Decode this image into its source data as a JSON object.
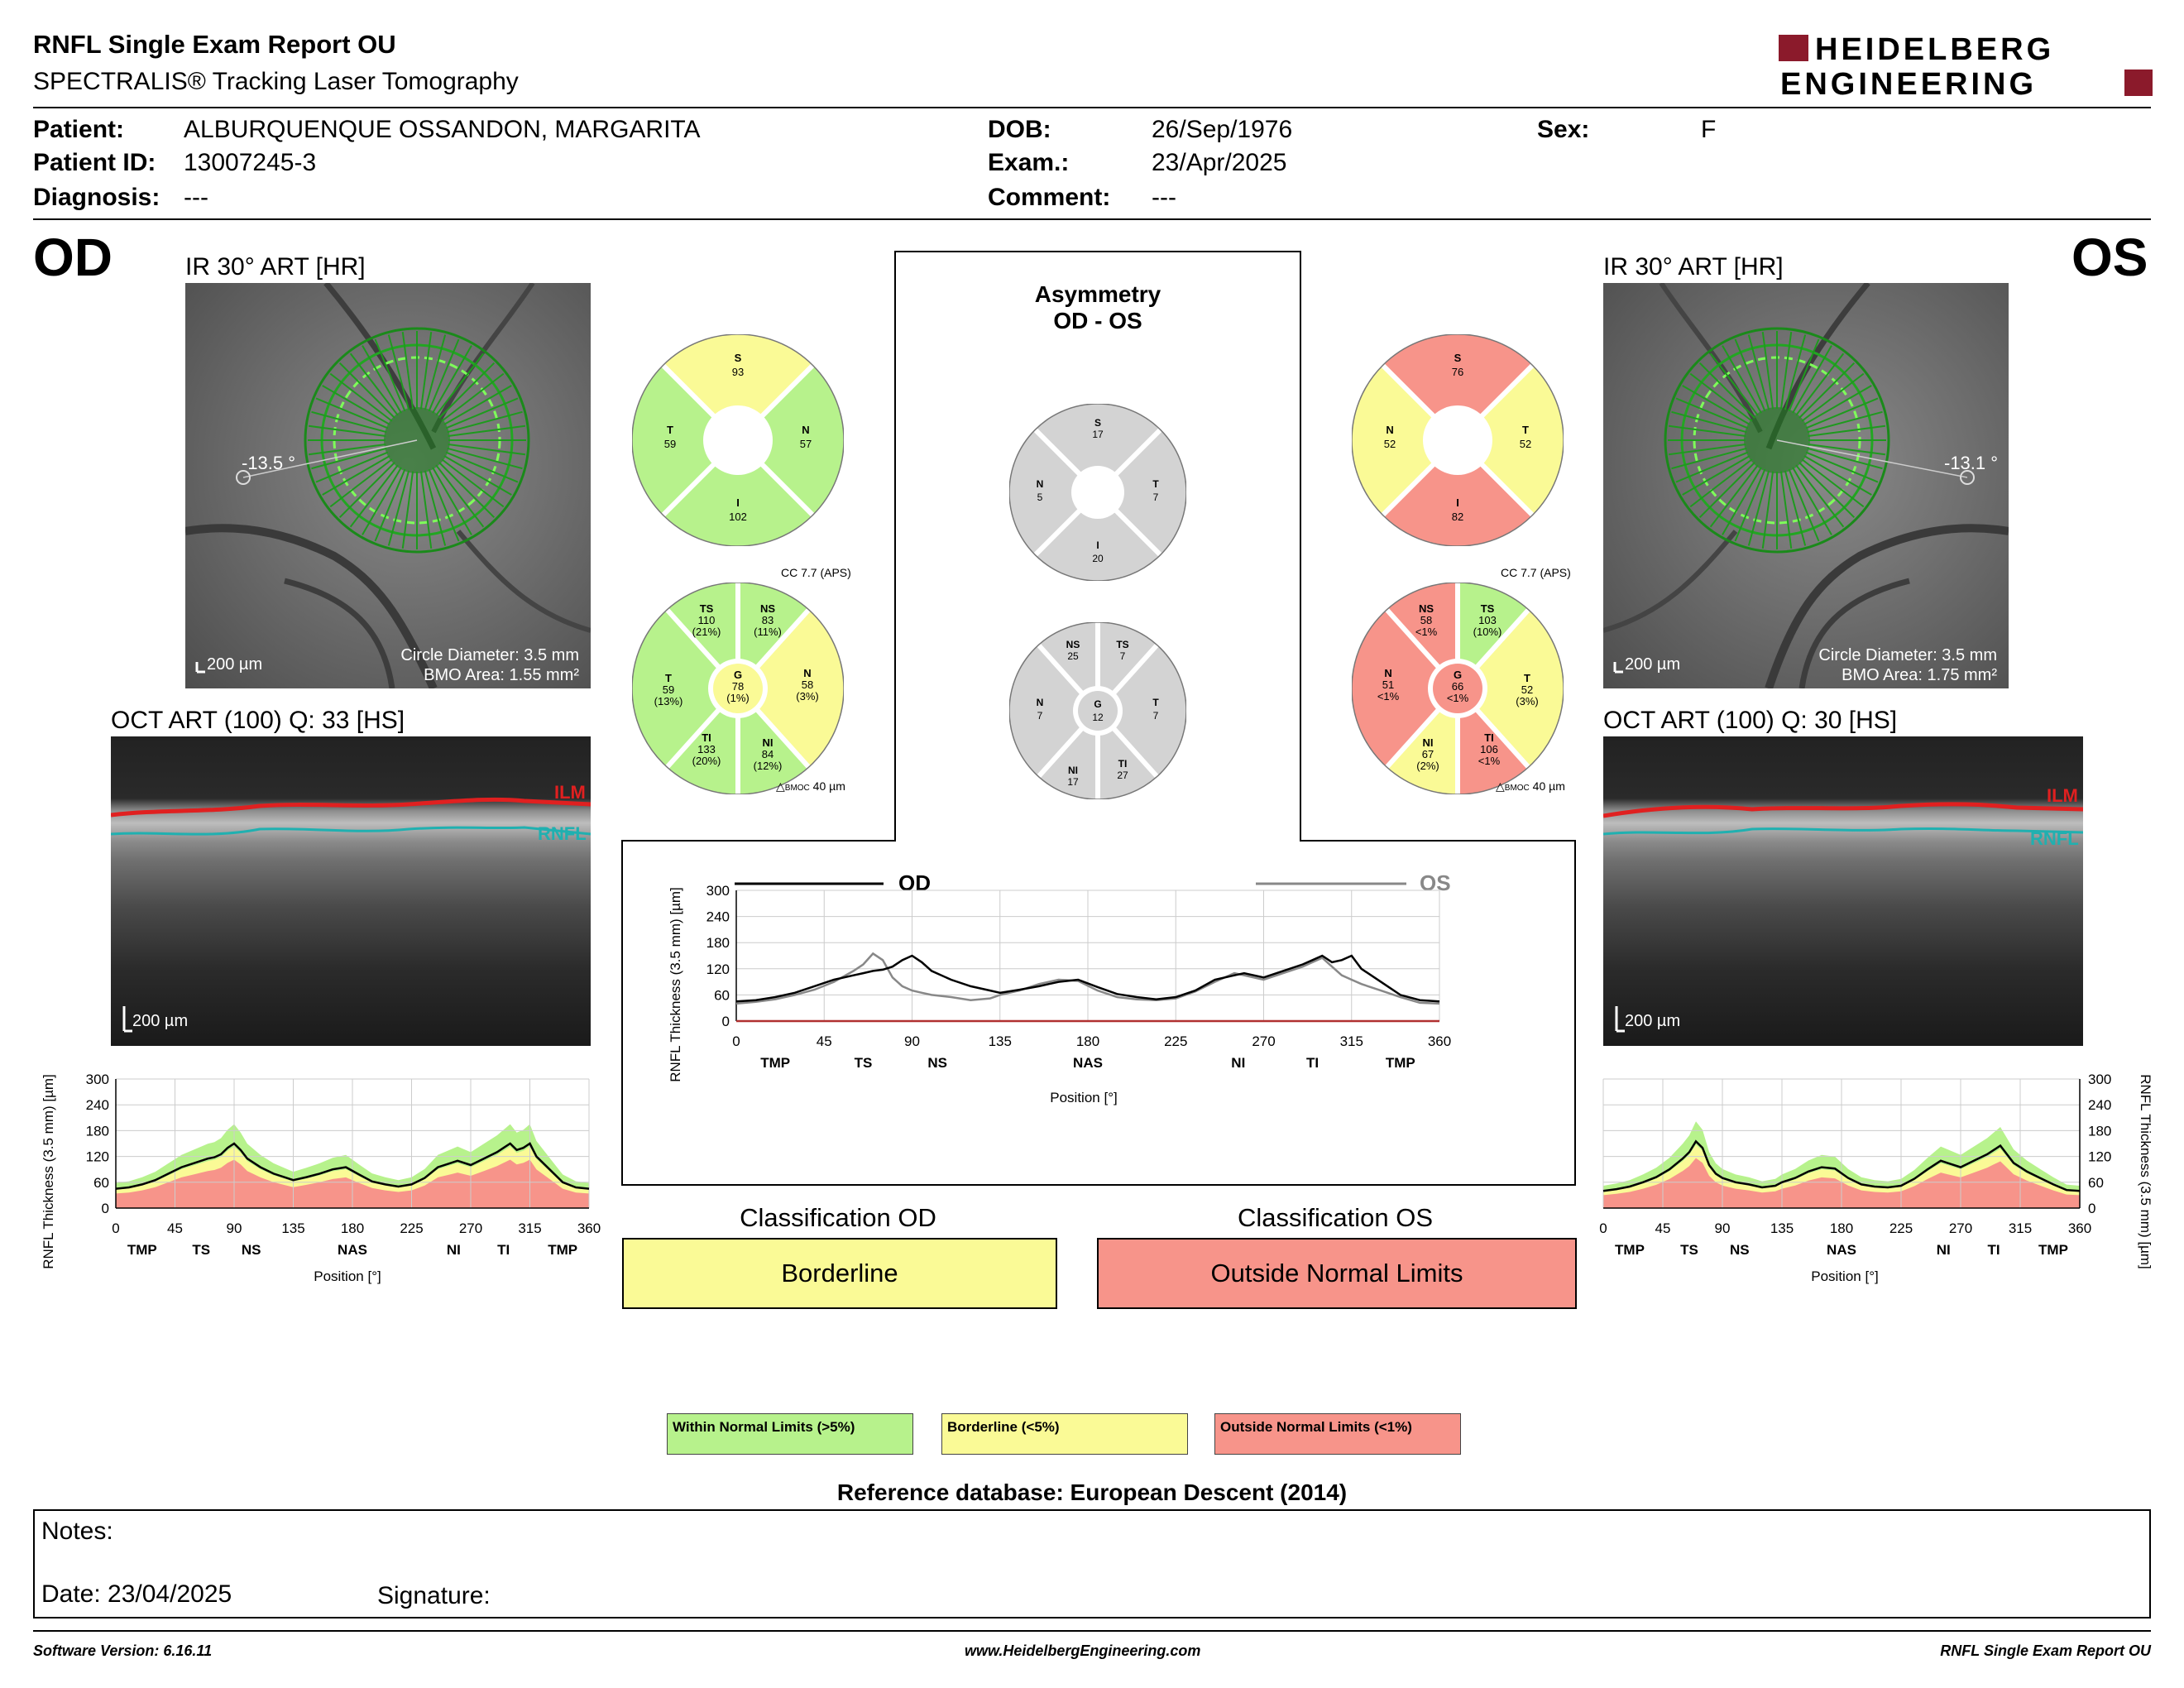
{
  "report": {
    "title": "RNFL Single Exam Report OU",
    "subtitle": "SPECTRALIS® Tracking Laser Tomography",
    "logo_line1": "HEIDELBERG",
    "logo_line2": "ENGINEERING"
  },
  "patient": {
    "patient_label": "Patient:",
    "patient_value": "ALBURQUENQUE OSSANDON, MARGARITA",
    "id_label": "Patient ID:",
    "id_value": "13007245-3",
    "diagnosis_label": "Diagnosis:",
    "diagnosis_value": "---",
    "dob_label": "DOB:",
    "dob_value": "26/Sep/1976",
    "exam_label": "Exam.:",
    "exam_value": "23/Apr/2025",
    "comment_label": "Comment:",
    "comment_value": "---",
    "sex_label": "Sex:",
    "sex_value": "F"
  },
  "od": {
    "eye": "OD",
    "ir_title": "IR 30° ART [HR]",
    "angle": "-13.5 °",
    "scale": "200 µm",
    "circle_diameter": "Circle Diameter: 3.5 mm",
    "bmo_area": "BMO Area: 1.55 mm²",
    "oct_title": "OCT ART (100) Q: 33 [HS]",
    "oct_scale": "200 µm",
    "ilm": "ILM",
    "rnfl": "RNFL",
    "quad": {
      "S": "93",
      "N": "57",
      "I": "102",
      "T": "59"
    },
    "sector": {
      "TS": "110",
      "TS_p": "(21%)",
      "NS": "83",
      "NS_p": "(11%)",
      "N": "58",
      "N_p": "(3%)",
      "NI": "84",
      "NI_p": "(12%)",
      "TI": "133",
      "TI_p": "(20%)",
      "T": "59",
      "T_p": "(13%)",
      "G": "78",
      "G_p": "(1%)"
    },
    "cc": "CC 7.7 (APS)",
    "bmoc": "40 µm",
    "bmoc_label": "BMOC"
  },
  "os": {
    "eye": "OS",
    "ir_title": "IR 30° ART [HR]",
    "angle": "-13.1 °",
    "scale": "200 µm",
    "circle_diameter": "Circle Diameter: 3.5 mm",
    "bmo_area": "BMO Area: 1.75 mm²",
    "oct_title": "OCT ART (100) Q: 30 [HS]",
    "oct_scale": "200 µm",
    "ilm": "ILM",
    "rnfl": "RNFL",
    "quad": {
      "S": "76",
      "N": "52",
      "I": "82",
      "T": "52"
    },
    "sector": {
      "NS": "58",
      "NS_p": "<1%",
      "TS": "103",
      "TS_p": "(10%)",
      "T": "52",
      "T_p": "(3%)",
      "TI": "106",
      "TI_p": "<1%",
      "NI": "67",
      "NI_p": "(2%)",
      "N": "51",
      "N_p": "<1%",
      "G": "66",
      "G_p": "<1%"
    },
    "cc": "CC 7.7 (APS)",
    "bmoc": "40 µm",
    "bmoc_label": "BMOC"
  },
  "asymmetry": {
    "title1": "Asymmetry",
    "title2": "OD - OS",
    "quad": {
      "S": "17",
      "T": "7",
      "I": "20",
      "N": "5"
    },
    "sector": {
      "NS": "25",
      "TS": "7",
      "T": "7",
      "TI": "27",
      "NI": "17",
      "N": "7",
      "G": "12"
    }
  },
  "labels": {
    "S": "S",
    "N": "N",
    "I": "I",
    "T": "T",
    "TS": "TS",
    "NS": "NS",
    "NI": "NI",
    "TI": "TI",
    "G": "G"
  },
  "colors": {
    "normal": "#b7f28c",
    "borderline": "#fafa96",
    "outside": "#f7948a",
    "gray": "#d3d3d3"
  },
  "compare_chart": {
    "ylabel": "RNFL Thickness (3.5 mm) [µm]",
    "xlabel": "Position [°]",
    "od_label": "OD",
    "os_label": "OS"
  },
  "side_chart": {
    "ylabel": "RNFL Thickness (3.5 mm) [µm]",
    "xlabel": "Position [°]"
  },
  "chart_data": [
    {
      "type": "line",
      "title": "",
      "xlabel": "Position [°]",
      "ylabel": "RNFL Thickness (3.5 mm) [µm]",
      "xlim": [
        0,
        360
      ],
      "ylim": [
        0,
        300
      ],
      "xticks": [
        0,
        45,
        90,
        135,
        180,
        225,
        270,
        315,
        360
      ],
      "yticks": [
        0,
        60,
        120,
        180,
        240,
        300
      ],
      "region_labels": [
        {
          "label": "TMP",
          "at": 20
        },
        {
          "label": "TS",
          "at": 65
        },
        {
          "label": "NS",
          "at": 103
        },
        {
          "label": "NAS",
          "at": 180
        },
        {
          "label": "NI",
          "at": 257
        },
        {
          "label": "TI",
          "at": 295
        },
        {
          "label": "TMP",
          "at": 340
        }
      ],
      "x": [
        0,
        10,
        20,
        30,
        40,
        50,
        60,
        65,
        70,
        75,
        80,
        85,
        90,
        95,
        100,
        110,
        120,
        130,
        135,
        145,
        155,
        165,
        175,
        185,
        195,
        205,
        215,
        225,
        235,
        245,
        255,
        260,
        270,
        280,
        290,
        295,
        300,
        305,
        310,
        315,
        320,
        330,
        340,
        350,
        360
      ],
      "series": [
        {
          "name": "OD",
          "color": "#000000",
          "values": [
            45,
            48,
            55,
            65,
            80,
            95,
            105,
            110,
            115,
            118,
            125,
            140,
            150,
            135,
            115,
            95,
            80,
            70,
            65,
            72,
            80,
            90,
            95,
            78,
            62,
            55,
            50,
            55,
            70,
            95,
            105,
            110,
            100,
            115,
            130,
            140,
            150,
            135,
            140,
            150,
            120,
            90,
            60,
            48,
            45
          ]
        },
        {
          "name": "OS",
          "color": "#888888",
          "values": [
            40,
            44,
            50,
            60,
            72,
            90,
            115,
            130,
            155,
            140,
            100,
            80,
            70,
            65,
            60,
            55,
            48,
            52,
            60,
            70,
            85,
            95,
            92,
            70,
            55,
            50,
            48,
            52,
            68,
            90,
            110,
            105,
            95,
            110,
            125,
            135,
            145,
            125,
            105,
            95,
            85,
            70,
            55,
            42,
            40
          ]
        }
      ]
    },
    {
      "type": "area",
      "title": "",
      "xlabel": "Position [°]",
      "ylabel": "RNFL Thickness (3.5 mm) [µm]",
      "xlim": [
        0,
        360
      ],
      "ylim": [
        0,
        300
      ],
      "xticks": [
        0,
        45,
        90,
        135,
        180,
        225,
        270,
        315,
        360
      ],
      "yticks": [
        0,
        60,
        120,
        180,
        240,
        300
      ],
      "region_labels": [
        {
          "label": "TMP",
          "at": 20
        },
        {
          "label": "TS",
          "at": 65
        },
        {
          "label": "NS",
          "at": 103
        },
        {
          "label": "NAS",
          "at": 180
        },
        {
          "label": "NI",
          "at": 257
        },
        {
          "label": "TI",
          "at": 295
        },
        {
          "label": "TMP",
          "at": 340
        }
      ],
      "series": [
        {
          "name": "OD",
          "values": [
            45,
            48,
            55,
            65,
            80,
            95,
            105,
            110,
            115,
            118,
            125,
            140,
            150,
            135,
            115,
            95,
            80,
            70,
            65,
            72,
            80,
            90,
            95,
            78,
            62,
            55,
            50,
            55,
            70,
            95,
            105,
            110,
            100,
            115,
            130,
            140,
            150,
            135,
            140,
            150,
            120,
            90,
            60,
            48,
            45
          ]
        }
      ]
    },
    {
      "type": "area",
      "title": "",
      "xlabel": "Position [°]",
      "ylabel": "RNFL Thickness (3.5 mm) [µm]",
      "xlim": [
        0,
        360
      ],
      "ylim": [
        0,
        300
      ],
      "xticks": [
        0,
        45,
        90,
        135,
        180,
        225,
        270,
        315,
        360
      ],
      "yticks": [
        0,
        60,
        120,
        180,
        240,
        300
      ],
      "region_labels": [
        {
          "label": "TMP",
          "at": 20
        },
        {
          "label": "TS",
          "at": 65
        },
        {
          "label": "NS",
          "at": 103
        },
        {
          "label": "NAS",
          "at": 180
        },
        {
          "label": "NI",
          "at": 257
        },
        {
          "label": "TI",
          "at": 295
        },
        {
          "label": "TMP",
          "at": 340
        }
      ],
      "series": [
        {
          "name": "OS",
          "values": [
            40,
            44,
            50,
            60,
            72,
            90,
            115,
            130,
            155,
            140,
            100,
            80,
            70,
            65,
            60,
            55,
            48,
            52,
            60,
            70,
            85,
            95,
            92,
            70,
            55,
            50,
            48,
            52,
            68,
            90,
            110,
            105,
            95,
            110,
            125,
            135,
            145,
            125,
            105,
            95,
            85,
            70,
            55,
            42,
            40
          ]
        }
      ]
    }
  ],
  "classification": {
    "od_title": "Classification OD",
    "od_value": "Borderline",
    "os_title": "Classification OS",
    "os_value": "Outside Normal Limits"
  },
  "legend": {
    "normal": "Within Normal Limits (>5%)",
    "borderline": "Borderline (<5%)",
    "outside": "Outside Normal Limits (<1%)"
  },
  "reference": "Reference database: European Descent (2014)",
  "notes": {
    "notes_label": "Notes:",
    "date": "Date: 23/04/2025",
    "signature": "Signature:"
  },
  "footer": {
    "software": "Software Version: 6.16.11",
    "website": "www.HeidelbergEngineering.com",
    "report": "RNFL Single Exam Report OU"
  }
}
